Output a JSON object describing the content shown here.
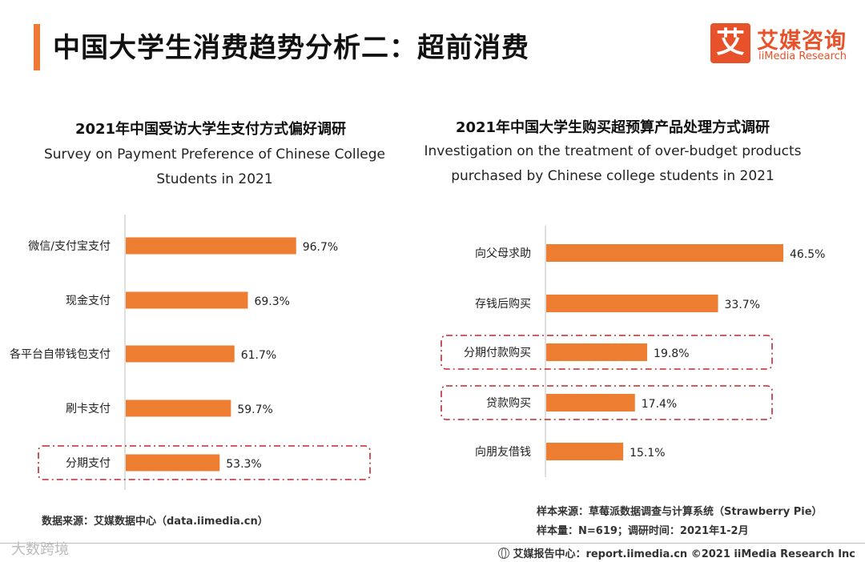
{
  "page": {
    "title": "中国大学生消费趋势分析二：超前消费",
    "logo_mark": "艾",
    "logo_cn": "艾媒咨询",
    "logo_en": "iiMedia Research"
  },
  "left": {
    "title_cn": "2021年中国受访大学生支付方式偏好调研",
    "title_en": "Survey on Payment Preference of Chinese College Students in 2021",
    "source": "数据来源：艾媒数据中心（data.iimedia.cn）"
  },
  "right": {
    "title_cn": "2021年中国大学生购买超预算产品处理方式调研",
    "title_en": "Investigation on the treatment of over-budget products purchased by Chinese college students in 2021",
    "source_line1": "样本来源：草莓派数据调查与计算系统（Strawberry Pie）",
    "source_line2": "样本量：N=619；调研时间：2021年1-2月"
  },
  "footer": {
    "text": "艾媒报告中心：report.iimedia.cn  ©2021  iiMedia Research  Inc",
    "watermark": "大数跨境"
  },
  "colors": {
    "bar": "#ed7d31",
    "accent": "#ef7a35",
    "highlight": "#c0282d"
  },
  "chart_data": [
    {
      "type": "bar",
      "orientation": "horizontal",
      "title": "2021年中国受访大学生支付方式偏好调研",
      "subtitle": "Survey on Payment Preference of Chinese College Students in 2021",
      "categories": [
        "微信/支付宝支付",
        "现金支付",
        "各平台自带钱包支付",
        "刷卡支付",
        "分期支付"
      ],
      "values": [
        96.7,
        69.3,
        61.7,
        59.7,
        53.3
      ],
      "labels": [
        "96.7%",
        "69.3%",
        "61.7%",
        "59.7%",
        "53.3%"
      ],
      "unit": "%",
      "xlim": [
        0,
        100
      ],
      "highlighted": [
        "分期支付"
      ]
    },
    {
      "type": "bar",
      "orientation": "horizontal",
      "title": "2021年中国大学生购买超预算产品处理方式调研",
      "subtitle": "Investigation on the treatment of over-budget products purchased by Chinese college students in 2021",
      "categories": [
        "向父母求助",
        "存钱后购买",
        "分期付款购买",
        "贷款购买",
        "向朋友借钱"
      ],
      "values": [
        46.5,
        33.7,
        19.8,
        17.4,
        15.1
      ],
      "labels": [
        "46.5%",
        "33.7%",
        "19.8%",
        "17.4%",
        "15.1%"
      ],
      "unit": "%",
      "xlim": [
        0,
        46.5
      ],
      "highlighted": [
        "分期付款购买",
        "贷款购买"
      ]
    }
  ]
}
